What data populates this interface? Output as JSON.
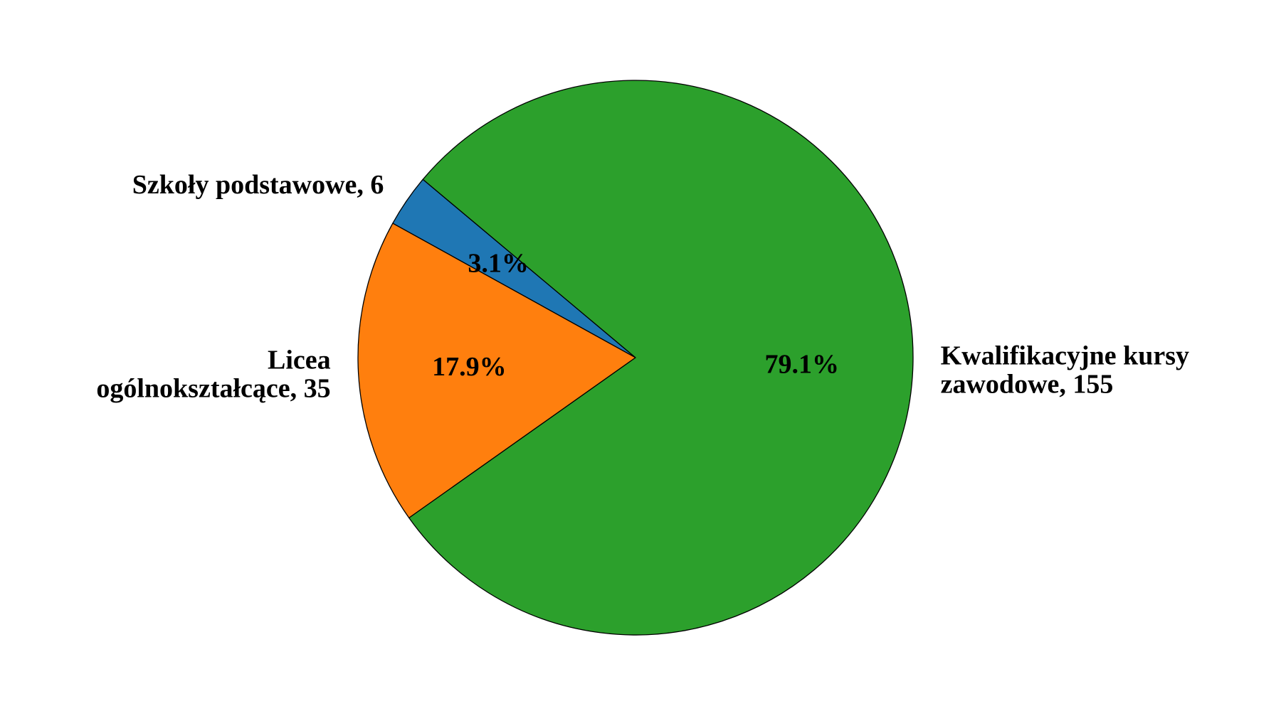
{
  "chart_data": {
    "type": "pie",
    "title": "",
    "slices": [
      {
        "name": "Szkoły podstawowe",
        "value": 6,
        "percent": "3.1%",
        "label_lines": [
          "Szkoły podstawowe, 6"
        ],
        "color": "#1f77b4"
      },
      {
        "name": "Licea ogólnokształcące",
        "value": 35,
        "percent": "17.9%",
        "label_lines": [
          "Licea",
          "ogólnokształcące, 35"
        ],
        "color": "#ff7f0e"
      },
      {
        "name": "Kwalifikacyjne kursy zawodowe",
        "value": 155,
        "percent": "79.1%",
        "label_lines": [
          "Kwalifikacyjne kursy",
          "zawodowe, 155"
        ],
        "color": "#2ca02c"
      }
    ],
    "start_angle_deg": 140,
    "direction": "counterclockwise",
    "edge_color": "#000000"
  }
}
